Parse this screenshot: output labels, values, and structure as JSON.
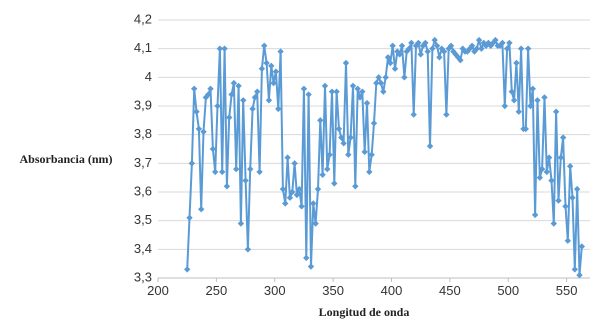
{
  "chart_data": {
    "type": "line",
    "xlabel": "Longitud de onda",
    "ylabel": "Absorbancia (nm)",
    "xlim": [
      200,
      570
    ],
    "ylim": [
      3.3,
      4.2
    ],
    "x_ticks": [
      200,
      250,
      300,
      350,
      400,
      450,
      500,
      550
    ],
    "x_tick_labels": [
      "200",
      "250",
      "300",
      "350",
      "400",
      "450",
      "500",
      "550"
    ],
    "y_ticks": [
      3.3,
      3.4,
      3.5,
      3.6,
      3.7,
      3.8,
      3.9,
      4.0,
      4.1,
      4.2
    ],
    "y_tick_labels": [
      "3,3",
      "3,4",
      "3,5",
      "3,6",
      "3,7",
      "3,8",
      "3,9",
      "4",
      "4,1",
      "4,2"
    ],
    "grid": "horizontal",
    "legend": "none",
    "series_color": "#5b9bd5",
    "marker": "diamond",
    "series": [
      {
        "x": [
          225,
          227,
          229,
          231,
          233,
          235,
          237,
          239,
          241,
          243,
          245,
          247,
          249,
          251,
          253,
          255,
          257,
          259,
          261,
          263,
          265,
          267,
          269,
          271,
          273,
          275,
          277,
          279,
          281,
          283,
          285,
          287,
          289,
          291,
          293,
          295,
          297,
          299,
          301,
          303,
          305,
          307,
          309,
          311,
          313,
          315,
          317,
          319,
          321,
          323,
          325,
          327,
          329,
          331,
          333,
          335,
          337,
          339,
          341,
          343,
          345,
          347,
          349,
          351,
          353,
          355,
          357,
          359,
          361,
          363,
          365,
          367,
          369,
          371,
          373,
          375,
          377,
          379,
          381,
          383,
          385,
          387,
          389,
          391,
          393,
          395,
          397,
          399,
          401,
          403,
          405,
          407,
          409,
          411,
          413,
          415,
          417,
          419,
          421,
          423,
          425,
          427,
          429,
          431,
          433,
          435,
          437,
          439,
          441,
          443,
          445,
          447,
          449,
          451,
          453,
          455,
          457,
          459,
          461,
          463,
          465,
          467,
          469,
          471,
          473,
          475,
          477,
          479,
          481,
          483,
          485,
          487,
          489,
          491,
          493,
          495,
          497,
          499,
          501,
          503,
          505,
          507,
          509,
          511,
          513,
          515,
          517,
          519,
          521,
          523,
          525,
          527,
          529,
          531,
          533,
          535,
          537,
          539,
          541,
          543,
          545,
          547,
          549,
          551,
          553,
          555,
          557,
          559,
          561,
          563
        ],
        "y": [
          3.33,
          3.51,
          3.7,
          3.96,
          3.88,
          3.82,
          3.54,
          3.81,
          3.93,
          3.94,
          3.96,
          3.75,
          3.67,
          3.9,
          4.1,
          3.67,
          4.1,
          3.62,
          3.86,
          3.94,
          3.98,
          3.68,
          3.97,
          3.49,
          3.92,
          3.64,
          3.4,
          3.68,
          3.89,
          3.93,
          3.95,
          3.67,
          4.03,
          4.11,
          4.05,
          3.92,
          4.04,
          3.98,
          4.02,
          3.89,
          4.09,
          3.61,
          3.56,
          3.72,
          3.58,
          3.6,
          3.7,
          3.59,
          3.61,
          3.55,
          3.96,
          3.37,
          3.94,
          3.34,
          3.56,
          3.49,
          3.61,
          3.85,
          3.66,
          3.97,
          3.68,
          3.73,
          3.95,
          3.63,
          3.95,
          3.82,
          3.79,
          3.77,
          4.05,
          3.73,
          3.79,
          3.97,
          3.62,
          3.96,
          3.93,
          3.95,
          3.74,
          3.91,
          3.67,
          3.73,
          3.84,
          3.98,
          4.0,
          3.98,
          3.95,
          4.0,
          4.07,
          4.05,
          4.11,
          4.03,
          4.09,
          4.08,
          4.11,
          4.0,
          4.09,
          4.1,
          4.12,
          3.87,
          4.11,
          4.12,
          4.08,
          4.11,
          4.12,
          4.09,
          3.76,
          4.1,
          4.13,
          4.11,
          4.07,
          4.1,
          4.09,
          3.87,
          4.1,
          4.11,
          4.09,
          4.08,
          4.07,
          4.06,
          4.1,
          4.09,
          4.09,
          4.1,
          4.11,
          4.09,
          4.1,
          4.13,
          4.1,
          4.12,
          4.11,
          4.12,
          4.11,
          4.12,
          4.13,
          4.11,
          4.11,
          4.12,
          3.9,
          4.1,
          4.12,
          3.95,
          3.92,
          4.05,
          3.88,
          4.1,
          3.82,
          3.82,
          4.1,
          3.9,
          3.96,
          3.52,
          3.92,
          3.65,
          3.68,
          3.93,
          3.67,
          3.72,
          3.64,
          3.49,
          3.88,
          3.57,
          3.72,
          3.79,
          3.55,
          3.43,
          3.69,
          3.58,
          3.33,
          3.61,
          3.31,
          3.41
        ]
      }
    ]
  }
}
